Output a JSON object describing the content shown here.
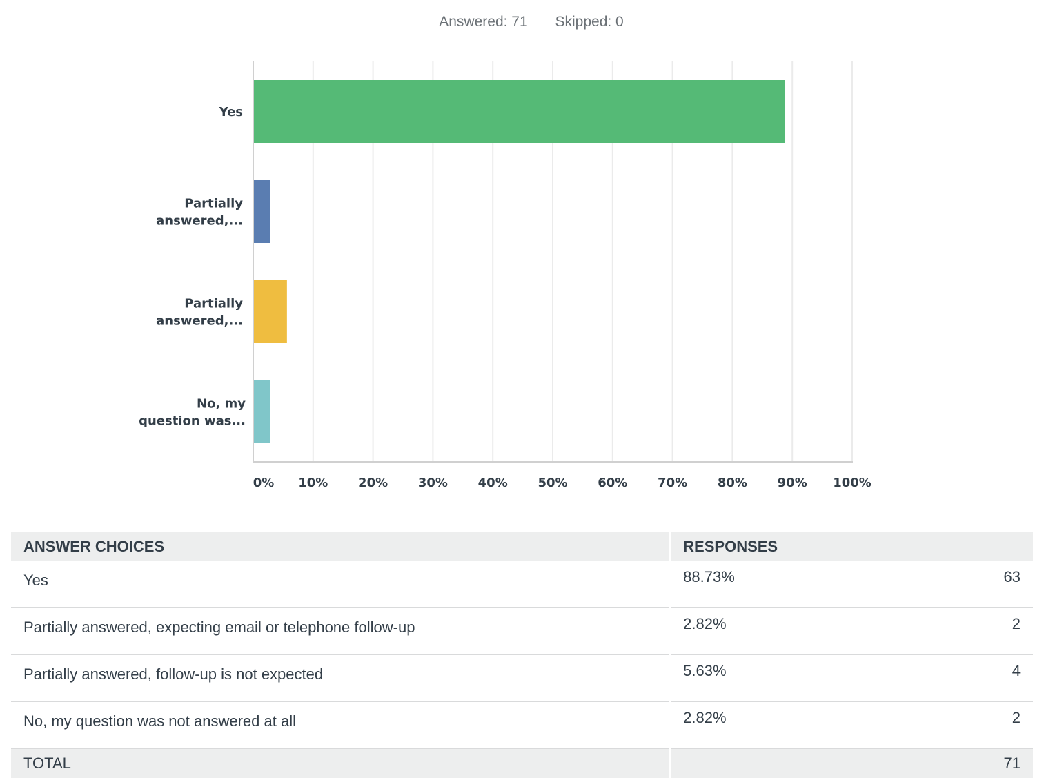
{
  "summary": {
    "answered": "Answered: 71",
    "skipped": "Skipped: 0"
  },
  "chart_data": {
    "type": "bar",
    "orientation": "horizontal",
    "categories": [
      "Yes",
      "Partially answered,...",
      "Partially answered,...",
      "No, my question was..."
    ],
    "category_lines": [
      [
        "Yes"
      ],
      [
        "Partially",
        "answered,..."
      ],
      [
        "Partially",
        "answered,..."
      ],
      [
        "No, my",
        "question was..."
      ]
    ],
    "values": [
      88.73,
      2.82,
      5.63,
      2.82
    ],
    "colors": [
      "#55ba76",
      "#5a7db1",
      "#efbd40",
      "#80c6c9"
    ],
    "xticks": [
      "0%",
      "10%",
      "20%",
      "30%",
      "40%",
      "50%",
      "60%",
      "70%",
      "80%",
      "90%",
      "100%"
    ],
    "xlim": [
      0,
      100
    ],
    "grid": true,
    "xlabel": "",
    "ylabel": ""
  },
  "table": {
    "headers": [
      "ANSWER CHOICES",
      "RESPONSES"
    ],
    "rows": [
      {
        "label": "Yes",
        "percent": "88.73%",
        "count": "63"
      },
      {
        "label": "Partially answered, expecting email or telephone follow-up",
        "percent": "2.82%",
        "count": "2"
      },
      {
        "label": "Partially answered, follow-up is not expected",
        "percent": "5.63%",
        "count": "4"
      },
      {
        "label": "No, my question was not answered at all",
        "percent": "2.82%",
        "count": "2"
      }
    ],
    "total_label": "TOTAL",
    "total_count": "71"
  }
}
